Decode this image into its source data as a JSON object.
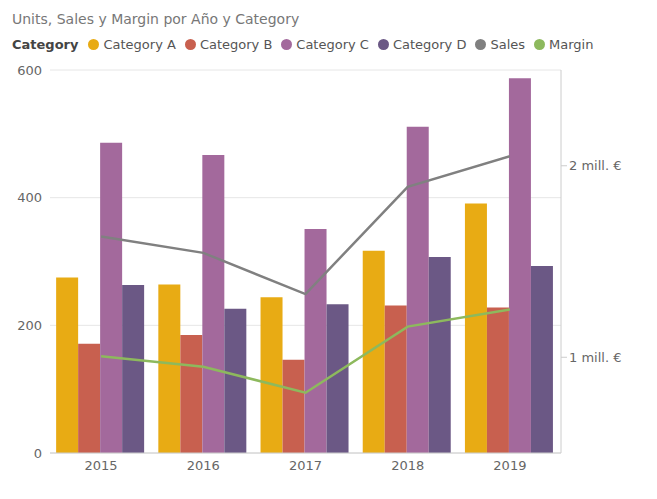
{
  "chart_data": {
    "type": "bar",
    "title": "Units, Sales y Margin por Año y Category",
    "legend_title": "Category",
    "categories": [
      "2015",
      "2016",
      "2017",
      "2018",
      "2019"
    ],
    "series": [
      {
        "name": "Category A",
        "color": "#E8AB14",
        "values": [
          275,
          264,
          244,
          317,
          391
        ]
      },
      {
        "name": "Category B",
        "color": "#C8604F",
        "values": [
          171,
          185,
          146,
          231,
          228
        ]
      },
      {
        "name": "Category C",
        "color": "#A3699C",
        "values": [
          486,
          467,
          351,
          511,
          587
        ]
      },
      {
        "name": "Category D",
        "color": "#6B5885",
        "values": [
          263,
          226,
          233,
          307,
          293
        ]
      },
      {
        "name": "Sales",
        "color": "#808080",
        "type": "line",
        "axis": "y2",
        "values": [
          1630000,
          1545000,
          1330000,
          1890000,
          2050000
        ]
      },
      {
        "name": "Margin",
        "color": "#8DB95D",
        "type": "line",
        "axis": "y2",
        "values": [
          1005000,
          950000,
          815000,
          1160000,
          1250000
        ]
      }
    ],
    "ylim": [
      0,
      600
    ],
    "yticks": [
      0,
      200,
      400,
      600
    ],
    "y2lim": [
      500000,
      2500000
    ],
    "y2ticks": [
      {
        "value": 1000000,
        "label": "1 mill. €"
      },
      {
        "value": 2000000,
        "label": "2 mill. €"
      }
    ],
    "grid": true
  }
}
